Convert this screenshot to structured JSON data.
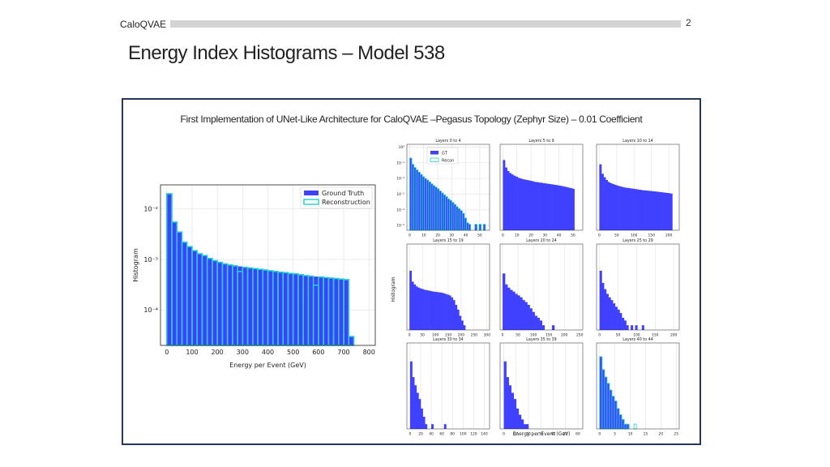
{
  "header": {
    "brand": "CaloQVAE",
    "page_number": "2"
  },
  "title": "Energy Index Histograms – Model 538",
  "figure": {
    "caption": "First Implementation of UNet-Like Architecture for CaloQVAE –Pegasus Topology (Zephyr Size) – 0.01 Coefficient"
  },
  "colors": {
    "gt": "#4040ff",
    "recon": "#20d0d0",
    "frame": "#26375c"
  },
  "chart_data": [
    {
      "type": "bar",
      "title": "",
      "xlabel": "Energy per Event (GeV)",
      "ylabel": "Histogram",
      "xlim": [
        -25,
        825
      ],
      "ylim": [
        2e-05,
        0.03
      ],
      "yscale": "log",
      "xticks": [
        0,
        100,
        200,
        300,
        400,
        500,
        600,
        700,
        800
      ],
      "yticks": [
        {
          "value": 0.01,
          "label": "10⁻²"
        },
        {
          "value": 0.001,
          "label": "10⁻³"
        },
        {
          "value": 0.0001,
          "label": "10⁻⁴"
        }
      ],
      "bin_width": 20,
      "legend": [
        "Ground Truth",
        "Reconstruction"
      ],
      "legend_position": "top-right",
      "grid": true,
      "series": [
        {
          "name": "Ground Truth",
          "bin_start": 0,
          "values": [
            0.02,
            0.0055,
            0.0035,
            0.0022,
            0.0018,
            0.0015,
            0.0013,
            0.0012,
            0.00105,
            0.00095,
            0.00088,
            0.00082,
            0.00078,
            0.00075,
            0.00073,
            0.0007,
            0.00068,
            0.00066,
            0.00064,
            0.00062,
            0.0006,
            0.00058,
            0.00056,
            0.00055,
            0.00053,
            0.00052,
            0.0005,
            0.00048,
            0.00047,
            0.00046,
            0.00045,
            0.00044,
            0.00043,
            0.00042,
            0.00041,
            0.0004,
            3e-05
          ]
        },
        {
          "name": "Reconstruction",
          "bin_start": 0,
          "values": [
            0.02,
            0.0055,
            0.0035,
            0.0022,
            0.0018,
            0.0015,
            0.0013,
            0.0012,
            0.00105,
            0.00095,
            0.00088,
            0.00082,
            0.00078,
            0.00075,
            0.00058,
            0.0007,
            0.00068,
            0.00066,
            0.00064,
            0.00062,
            0.0006,
            0.00058,
            0.00056,
            0.00055,
            0.00053,
            0.00052,
            0.0005,
            0.00048,
            0.00047,
            0.00031,
            0.00045,
            0.00044,
            0.00043,
            0.00042,
            0.00041,
            0.0004,
            3e-05
          ]
        }
      ]
    },
    {
      "type": "bar",
      "title": "Layers 0 to 4",
      "yscale": "log",
      "xlim": [
        -2,
        57
      ],
      "ylim": [
        5e-06,
        1.5
      ],
      "xticks": [
        0,
        10,
        20,
        30,
        40,
        50
      ],
      "yticks": [
        {
          "value": 1,
          "label": "10⁰"
        },
        {
          "value": 0.1,
          "label": "10⁻¹"
        },
        {
          "value": 0.01,
          "label": "10⁻²"
        },
        {
          "value": 0.001,
          "label": "10⁻³"
        },
        {
          "value": 0.0001,
          "label": "10⁻⁴"
        },
        {
          "value": 1e-05,
          "label": "10⁻⁵"
        }
      ],
      "legend": [
        "GT",
        "Recon"
      ],
      "legend_position": "top-center",
      "bin_width": 1.5,
      "series": [
        {
          "name": "GT",
          "bin_start": 0,
          "values": [
            0.2,
            0.08,
            0.05,
            0.035,
            0.025,
            0.018,
            0.013,
            0.01,
            0.008,
            0.006,
            0.0045,
            0.0035,
            0.0028,
            0.0022,
            0.0016,
            0.0012,
            0.0009,
            0.0007,
            0.0005,
            0.0004,
            0.0003,
            0.00022,
            0.00016,
            0.00012,
            9e-05,
            6e-05,
            3e-05,
            1.5e-05,
            1.2e-05,
            0,
            0,
            1.2e-05,
            0,
            1.2e-05,
            0,
            1.2e-05,
            0
          ]
        },
        {
          "name": "Recon",
          "bin_start": 0,
          "values": [
            0.2,
            0.08,
            0.05,
            0.035,
            0.025,
            0.018,
            0.013,
            0.01,
            0.008,
            0.006,
            0.0045,
            0.0035,
            0.0028,
            0.0022,
            0.0016,
            0.0012,
            0.0009,
            0.0007,
            0.0005,
            0.0004,
            0.0003,
            0.00022,
            0.00016,
            0.00012,
            9e-05,
            6e-05,
            3e-05,
            1.5e-05,
            1.2e-05,
            0,
            0,
            1.2e-05,
            0,
            1.2e-05,
            0,
            1.2e-05,
            0
          ]
        }
      ]
    },
    {
      "type": "bar",
      "title": "Layers 5 to 9",
      "yscale": "log",
      "xlim": [
        -2,
        57
      ],
      "ylim": [
        5e-06,
        1.5
      ],
      "xticks": [
        0,
        10,
        20,
        30,
        40,
        50
      ],
      "bin_width": 1.5,
      "series": [
        {
          "name": "GT",
          "bin_start": 0,
          "values": [
            0.15,
            0.05,
            0.03,
            0.022,
            0.018,
            0.015,
            0.013,
            0.011,
            0.01,
            0.009,
            0.0085,
            0.008,
            0.0075,
            0.007,
            0.0065,
            0.006,
            0.0058,
            0.0055,
            0.0053,
            0.005,
            0.0048,
            0.0046,
            0.0044,
            0.0042,
            0.004,
            0.0038,
            0.0036,
            0.0034,
            0.0032,
            0.003,
            0.0028,
            0.0026,
            0.0024,
            0.0022
          ]
        }
      ]
    },
    {
      "type": "bar",
      "title": "Layers 10 to 14",
      "yscale": "log",
      "xlim": [
        -8,
        230
      ],
      "ylim": [
        5e-06,
        1.5
      ],
      "xticks": [
        0,
        50,
        100,
        150,
        200
      ],
      "bin_width": 6,
      "series": [
        {
          "name": "GT",
          "bin_start": 0,
          "values": [
            0.08,
            0.02,
            0.012,
            0.008,
            0.006,
            0.005,
            0.0045,
            0.004,
            0.0036,
            0.0033,
            0.003,
            0.0028,
            0.0026,
            0.0025,
            0.0024,
            0.0023,
            0.0022,
            0.0021,
            0.002,
            0.0019,
            0.0018,
            0.00175,
            0.0017,
            0.00165,
            0.0016,
            0.00155,
            0.0015,
            0.00145,
            0.0014,
            0.00135,
            0.0013,
            0.00125,
            0.0012,
            0.00115,
            0.0011
          ]
        }
      ]
    },
    {
      "type": "bar",
      "title": "Layers 15 to 19",
      "yscale": "log",
      "xlim": [
        -10,
        310
      ],
      "ylim": [
        5e-06,
        1.5
      ],
      "xticks": [
        0,
        50,
        100,
        150,
        200,
        250,
        300
      ],
      "bin_width": 8,
      "series": [
        {
          "name": "GT",
          "bin_start": 0,
          "values": [
            0.03,
            0.006,
            0.004,
            0.003,
            0.0025,
            0.0022,
            0.002,
            0.0018,
            0.0017,
            0.0016,
            0.0015,
            0.0014,
            0.00135,
            0.0013,
            0.00125,
            0.0012,
            0.0011,
            0.001,
            0.0009,
            0.0008,
            0.0006,
            0.0004,
            0.0002,
            0.0001,
            4e-05,
            2e-05,
            1e-05
          ]
        }
      ]
    },
    {
      "type": "bar",
      "title": "Layers 20 to 24",
      "yscale": "log",
      "xlim": [
        -8,
        260
      ],
      "ylim": [
        5e-06,
        1.5
      ],
      "xticks": [
        0,
        50,
        100,
        150,
        200,
        250
      ],
      "bin_width": 8,
      "series": [
        {
          "name": "GT",
          "bin_start": 0,
          "values": [
            0.02,
            0.004,
            0.0025,
            0.0018,
            0.0014,
            0.001,
            0.0008,
            0.0006,
            0.0004,
            0.0003,
            0.0002,
            0.00012,
            7e-05,
            4e-05,
            3e-05,
            2e-05,
            1e-05,
            0,
            0,
            0,
            1e-05
          ]
        }
      ]
    },
    {
      "type": "bar",
      "title": "Layers 25 to 29",
      "yscale": "log",
      "xlim": [
        -8,
        215
      ],
      "ylim": [
        5e-06,
        1.5
      ],
      "xticks": [
        0,
        50,
        100,
        150,
        200
      ],
      "bin_width": 6,
      "series": [
        {
          "name": "GT",
          "bin_start": 0,
          "values": [
            0.03,
            0.005,
            0.002,
            0.001,
            0.0006,
            0.0004,
            0.00025,
            0.00015,
            0.0001,
            6e-05,
            3e-05,
            2e-05,
            1e-05,
            0,
            1e-05,
            0,
            1e-05,
            0,
            0,
            1e-05
          ]
        }
      ]
    },
    {
      "type": "bar",
      "title": "Layers 30 to 34",
      "yscale": "log",
      "xlim": [
        -6,
        150
      ],
      "ylim": [
        5e-06,
        1.5
      ],
      "xticks": [
        0,
        20,
        40,
        60,
        80,
        100,
        120,
        140
      ],
      "bin_width": 4,
      "series": [
        {
          "name": "GT",
          "bin_start": 0,
          "values": [
            0.1,
            0.01,
            0.003,
            0.001,
            0.0004,
            0.0001,
            3e-05,
            1e-05,
            0,
            0,
            1e-05,
            0,
            0,
            0,
            0,
            0,
            1e-05
          ]
        }
      ]
    },
    {
      "type": "bar",
      "title": "Layers 35 to 39",
      "yscale": "log",
      "xlim": [
        -3,
        64
      ],
      "ylim": [
        5e-06,
        1.5
      ],
      "xticks": [
        0,
        10,
        20,
        30,
        40,
        50,
        60
      ],
      "bin_width": 2,
      "series": [
        {
          "name": "GT",
          "bin_start": 0,
          "values": [
            0.1,
            0.01,
            0.003,
            0.001,
            0.0004,
            0.0001,
            4e-05,
            2e-05,
            1e-05,
            1e-05
          ]
        }
      ]
    },
    {
      "type": "bar",
      "title": "Layers 40 to 44",
      "yscale": "log",
      "xlim": [
        -1,
        26
      ],
      "ylim": [
        5e-06,
        1.5
      ],
      "xticks": [
        0,
        5,
        10,
        15,
        20,
        25
      ],
      "bin_width": 0.8,
      "series": [
        {
          "name": "GT",
          "bin_start": 0,
          "values": [
            0.2,
            0.03,
            0.01,
            0.004,
            0.0015,
            0.0006,
            0.0003,
            0.0001,
            4e-05,
            2e-05,
            1e-05,
            1e-05
          ]
        },
        {
          "name": "Recon",
          "bin_start": 0,
          "values": [
            0.2,
            0.03,
            0.01,
            0.004,
            0.0015,
            0.0006,
            0.0003,
            0.0001,
            4e-05,
            2e-05,
            1e-05,
            1e-05,
            0,
            0,
            1e-05
          ]
        }
      ]
    }
  ],
  "small_axes": {
    "ylabel": "Histogram",
    "xlabel": "Energy per Event (GeV)"
  }
}
